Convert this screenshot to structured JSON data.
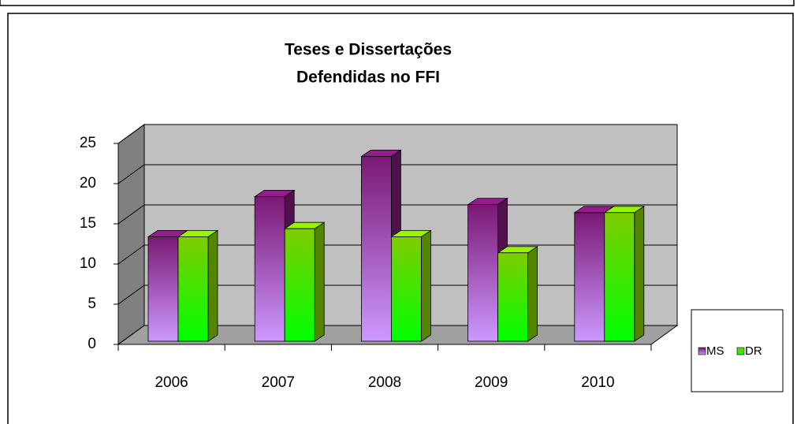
{
  "chart_data": {
    "type": "bar3d",
    "title": [
      "Teses e Dissertações",
      "Defendidas no FFI"
    ],
    "categories": [
      "2006",
      "2007",
      "2008",
      "2009",
      "2010"
    ],
    "series": [
      {
        "name": "MS",
        "color": "#7a1874",
        "values": [
          13,
          18,
          23,
          17,
          16
        ]
      },
      {
        "name": "DR",
        "color": "#7fcc00",
        "values": [
          13,
          14,
          13,
          11,
          16
        ]
      }
    ],
    "ylim": [
      0,
      25
    ],
    "yticks": [
      0,
      5,
      10,
      15,
      20,
      25
    ],
    "grid": true,
    "legend": "right"
  }
}
